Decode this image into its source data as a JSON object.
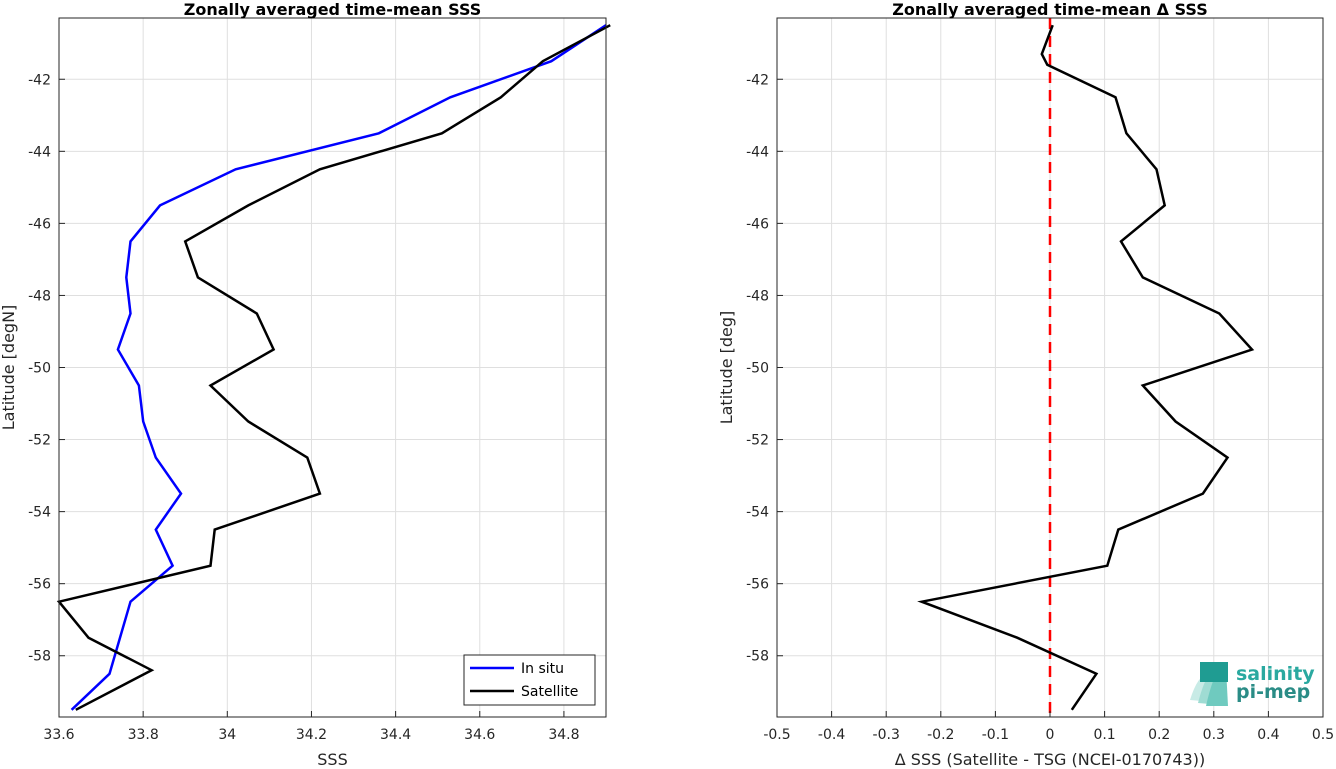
{
  "chart_data": [
    {
      "type": "line",
      "title": "Zonally averaged time-mean SSS",
      "xlabel": "SSS",
      "ylabel": "Latitude [degN]",
      "xlim": [
        33.6,
        34.9
      ],
      "ylim": [
        -59.7,
        -40.3
      ],
      "xticks": [
        33.6,
        33.8,
        34,
        34.2,
        34.4,
        34.6,
        34.8
      ],
      "xtick_labels": [
        "33.6",
        "33.8",
        "34",
        "34.2",
        "34.4",
        "34.6",
        "34.8"
      ],
      "yticks": [
        -42,
        -44,
        -46,
        -48,
        -50,
        -52,
        -54,
        -56,
        -58
      ],
      "ytick_labels": [
        "-42",
        "-44",
        "-46",
        "-48",
        "-50",
        "-52",
        "-54",
        "-56",
        "-58"
      ],
      "grid": true,
      "legend": "bottom-right",
      "series": [
        {
          "name": "In situ",
          "color": "#0000ff",
          "x": [
            34.9,
            34.77,
            34.53,
            34.36,
            34.02,
            33.84,
            33.77,
            33.76,
            33.77,
            33.74,
            33.79,
            33.8,
            33.83,
            33.89,
            33.83,
            33.87,
            33.77,
            33.72,
            33.63
          ],
          "y": [
            -40.5,
            -41.5,
            -42.5,
            -43.5,
            -44.5,
            -45.5,
            -46.5,
            -47.5,
            -48.5,
            -49.5,
            -50.5,
            -51.5,
            -52.5,
            -53.5,
            -54.5,
            -55.5,
            -56.5,
            -58.5,
            -59.5
          ]
        },
        {
          "name": "Satellite",
          "color": "#000000",
          "x": [
            34.91,
            34.75,
            34.65,
            34.51,
            34.22,
            34.05,
            33.9,
            33.93,
            34.07,
            34.11,
            33.96,
            34.05,
            34.19,
            34.22,
            33.97,
            33.96,
            33.6,
            33.67,
            33.82,
            33.64
          ],
          "y": [
            -40.5,
            -41.5,
            -42.5,
            -43.5,
            -44.5,
            -45.5,
            -46.5,
            -47.5,
            -48.5,
            -49.5,
            -50.5,
            -51.5,
            -52.5,
            -53.5,
            -54.5,
            -55.5,
            -56.5,
            -57.5,
            -58.4,
            -59.5
          ]
        }
      ]
    },
    {
      "type": "line",
      "title": "Zonally averaged time-mean Δ SSS",
      "xlabel": "Δ SSS (Satellite - TSG (NCEI-0170743))",
      "ylabel": "Latitude [deg]",
      "xlim": [
        -0.5,
        0.5
      ],
      "ylim": [
        -59.7,
        -40.3
      ],
      "xticks": [
        -0.5,
        -0.4,
        -0.3,
        -0.2,
        -0.1,
        0,
        0.1,
        0.2,
        0.3,
        0.4,
        0.5
      ],
      "xtick_labels": [
        "-0.5",
        "-0.4",
        "-0.3",
        "-0.2",
        "-0.1",
        "0",
        "0.1",
        "0.2",
        "0.3",
        "0.4",
        "0.5"
      ],
      "yticks": [
        -42,
        -44,
        -46,
        -48,
        -50,
        -52,
        -54,
        -56,
        -58
      ],
      "ytick_labels": [
        "-42",
        "-44",
        "-46",
        "-48",
        "-50",
        "-52",
        "-54",
        "-56",
        "-58"
      ],
      "grid": true,
      "reference_line": {
        "x": 0,
        "color": "#ff0000",
        "style": "dashed"
      },
      "series": [
        {
          "color": "#000000",
          "x": [
            0.005,
            -0.015,
            -0.005,
            0.12,
            0.14,
            0.195,
            0.21,
            0.13,
            0.17,
            0.31,
            0.37,
            0.17,
            0.23,
            0.325,
            0.28,
            0.125,
            0.105,
            -0.235,
            -0.06,
            0.085,
            0.04
          ],
          "y": [
            -40.5,
            -41.3,
            -41.6,
            -42.5,
            -43.5,
            -44.5,
            -45.5,
            -46.5,
            -47.5,
            -48.5,
            -49.5,
            -50.5,
            -51.5,
            -52.5,
            -53.5,
            -54.5,
            -55.5,
            -56.5,
            -57.5,
            -58.5,
            -59.5
          ]
        }
      ]
    }
  ],
  "logo": {
    "line1": "salinity",
    "line2": "pi-mep",
    "color": "#2aa9a0"
  }
}
